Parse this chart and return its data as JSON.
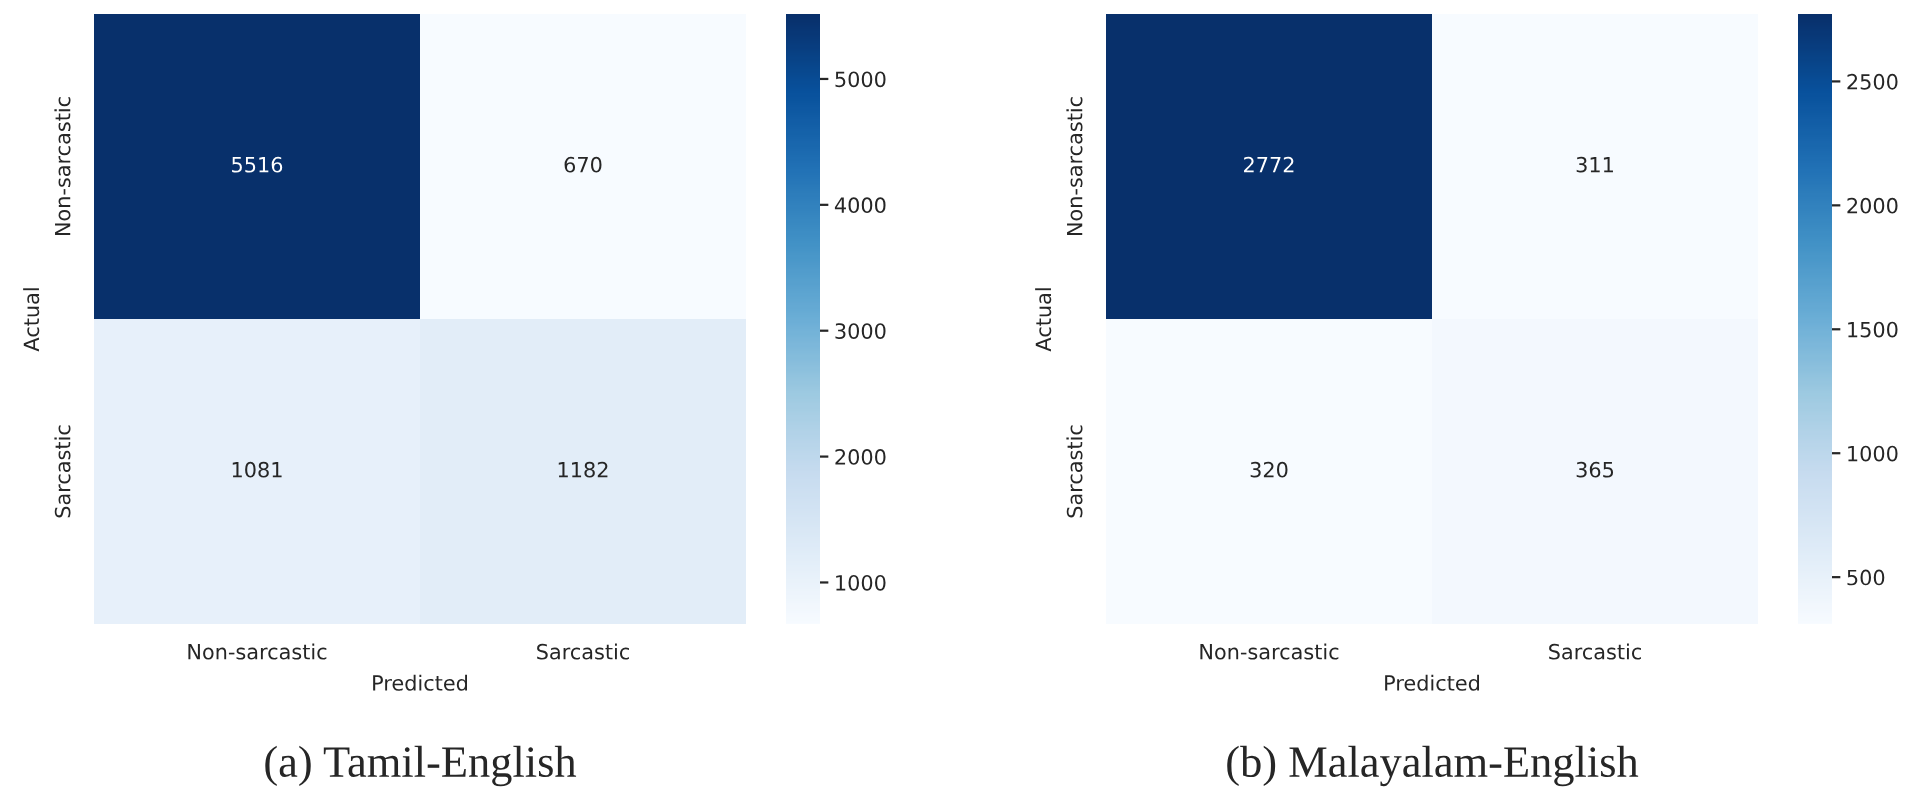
{
  "chart_data": [
    {
      "type": "heatmap",
      "xlabel": "Predicted",
      "ylabel": "Actual",
      "categories": [
        "Non-sarcastic",
        "Sarcastic"
      ],
      "y_categories": [
        "Non-sarcastic",
        "Sarcastic"
      ],
      "cells": [
        [
          5516,
          670
        ],
        [
          1081,
          1182
        ]
      ],
      "data_labels": true,
      "clim": [
        670,
        5516
      ],
      "cticks": [
        1000,
        2000,
        3000,
        4000,
        5000
      ],
      "annotations": [
        "(a) Tamil-English"
      ]
    },
    {
      "type": "heatmap",
      "xlabel": "Predicted",
      "ylabel": "Actual",
      "categories": [
        "Non-sarcastic",
        "Sarcastic"
      ],
      "y_categories": [
        "Non-sarcastic",
        "Sarcastic"
      ],
      "cells": [
        [
          2772,
          311
        ],
        [
          320,
          365
        ]
      ],
      "data_labels": true,
      "clim": [
        311,
        2772
      ],
      "cticks": [
        500,
        1000,
        1500,
        2000,
        2500
      ],
      "annotations": [
        "(b) Malayalam-English"
      ]
    }
  ]
}
